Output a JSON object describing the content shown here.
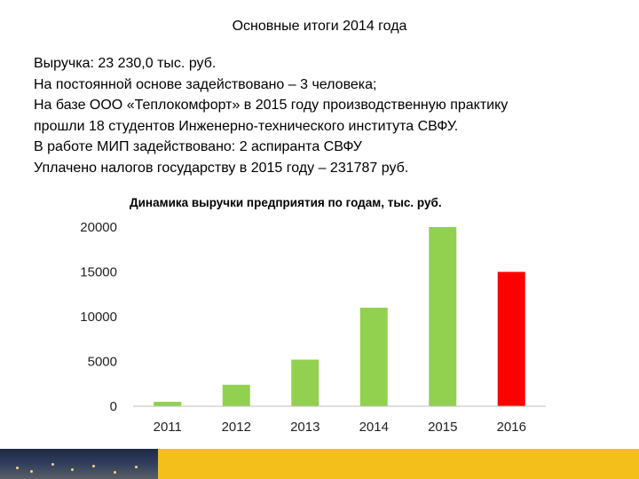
{
  "slide": {
    "title": "Основные итоги 2014 года",
    "lines": [
      "Выручка: 23 230,0 тыс. руб.",
      "На постоянной основе задействовано – 3 человека;",
      "На базе ООО «Теплокомфорт» в 2015 году производственную практику",
      "прошли  18 студентов Инженерно-технического института СВФУ.",
      "В работе МИП задействовано: 2 аспиранта СВФУ",
      "Уплачено налогов государству в 2015 году – 231787 руб."
    ]
  },
  "chart_data": {
    "type": "bar",
    "title": "Динамика выручки предприятия  по годам, тыс. руб.",
    "categories": [
      "2011",
      "2012",
      "2013",
      "2014",
      "2015",
      "2016"
    ],
    "values": [
      500,
      2400,
      5200,
      11000,
      20000,
      15000
    ],
    "bar_colors": [
      "#92d050",
      "#92d050",
      "#92d050",
      "#92d050",
      "#92d050",
      "#ff0000"
    ],
    "ylim": [
      0,
      20000
    ],
    "yticks": [
      0,
      5000,
      10000,
      15000,
      20000
    ],
    "xlabel": "",
    "ylabel": "",
    "grid": false,
    "legend": "none"
  },
  "footer": {
    "accent_color": "#f5bf1b"
  }
}
